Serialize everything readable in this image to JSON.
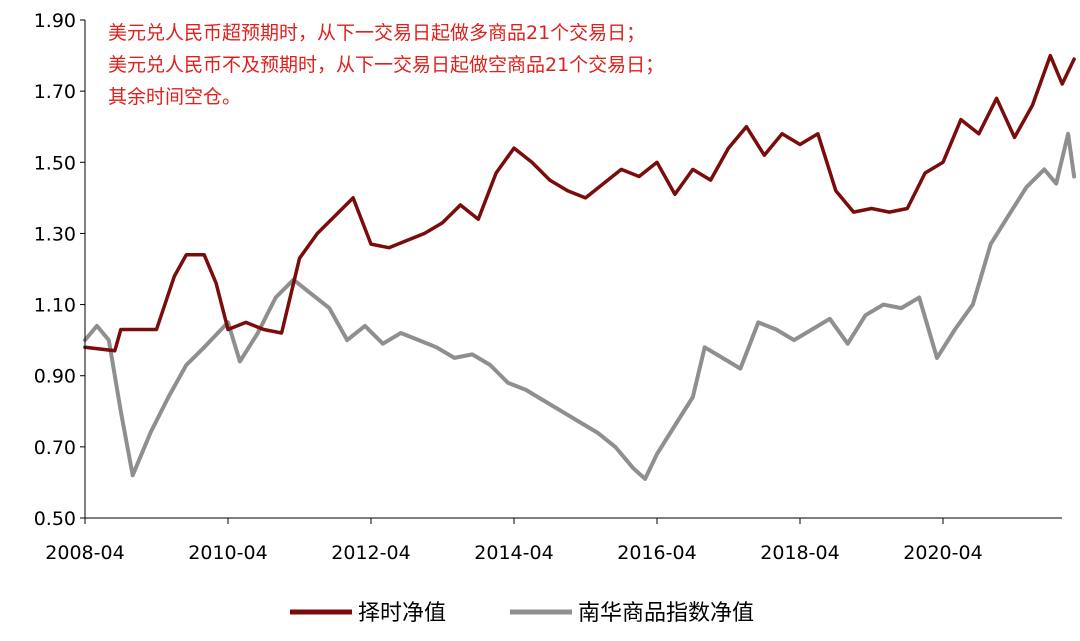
{
  "chart_data": {
    "type": "line",
    "title": "",
    "xlabel": "",
    "ylabel": "",
    "ylim": [
      0.5,
      1.9
    ],
    "y_ticks": [
      "0.50",
      "0.70",
      "0.90",
      "1.10",
      "1.30",
      "1.50",
      "1.70",
      "1.90"
    ],
    "x_ticks": [
      "2008-04",
      "2010-04",
      "2012-04",
      "2014-04",
      "2016-04",
      "2018-04",
      "2020-04"
    ],
    "grid": false,
    "legend_position": "bottom",
    "annotation": [
      "美元兑人民币超预期时，从下一交易日起做多商品21个交易日；",
      "美元兑人民币不及预期时，从下一交易日起做空商品21个交易日；",
      "其余时间空仓。"
    ],
    "series": [
      {
        "name": "择时净值",
        "color": "#7b0c0c",
        "points": [
          [
            "2008-04",
            0.98
          ],
          [
            "2008-09",
            0.97
          ],
          [
            "2008-10",
            1.03
          ],
          [
            "2009-04",
            1.03
          ],
          [
            "2009-07",
            1.18
          ],
          [
            "2009-09",
            1.24
          ],
          [
            "2009-12",
            1.24
          ],
          [
            "2010-02",
            1.16
          ],
          [
            "2010-04",
            1.03
          ],
          [
            "2010-07",
            1.05
          ],
          [
            "2010-10",
            1.03
          ],
          [
            "2011-01",
            1.02
          ],
          [
            "2011-04",
            1.23
          ],
          [
            "2011-07",
            1.3
          ],
          [
            "2011-10",
            1.35
          ],
          [
            "2012-01",
            1.4
          ],
          [
            "2012-04",
            1.27
          ],
          [
            "2012-07",
            1.26
          ],
          [
            "2012-10",
            1.28
          ],
          [
            "2013-01",
            1.3
          ],
          [
            "2013-04",
            1.33
          ],
          [
            "2013-07",
            1.38
          ],
          [
            "2013-10",
            1.34
          ],
          [
            "2014-01",
            1.47
          ],
          [
            "2014-04",
            1.54
          ],
          [
            "2014-07",
            1.5
          ],
          [
            "2014-10",
            1.45
          ],
          [
            "2015-01",
            1.42
          ],
          [
            "2015-04",
            1.4
          ],
          [
            "2015-07",
            1.44
          ],
          [
            "2015-10",
            1.48
          ],
          [
            "2016-01",
            1.46
          ],
          [
            "2016-04",
            1.5
          ],
          [
            "2016-07",
            1.41
          ],
          [
            "2016-10",
            1.48
          ],
          [
            "2017-01",
            1.45
          ],
          [
            "2017-04",
            1.54
          ],
          [
            "2017-07",
            1.6
          ],
          [
            "2017-10",
            1.52
          ],
          [
            "2018-01",
            1.58
          ],
          [
            "2018-04",
            1.55
          ],
          [
            "2018-07",
            1.58
          ],
          [
            "2018-10",
            1.42
          ],
          [
            "2019-01",
            1.36
          ],
          [
            "2019-04",
            1.37
          ],
          [
            "2019-07",
            1.36
          ],
          [
            "2019-10",
            1.37
          ],
          [
            "2020-01",
            1.47
          ],
          [
            "2020-04",
            1.5
          ],
          [
            "2020-07",
            1.62
          ],
          [
            "2020-10",
            1.58
          ],
          [
            "2021-01",
            1.68
          ],
          [
            "2021-04",
            1.57
          ],
          [
            "2021-07",
            1.66
          ],
          [
            "2021-10",
            1.8
          ],
          [
            "2021-12",
            1.72
          ],
          [
            "2022-02",
            1.79
          ]
        ]
      },
      {
        "name": "南华商品指数净值",
        "color": "#8f8f8f",
        "points": [
          [
            "2008-04",
            1.0
          ],
          [
            "2008-06",
            1.04
          ],
          [
            "2008-08",
            1.0
          ],
          [
            "2008-10",
            0.8
          ],
          [
            "2008-12",
            0.62
          ],
          [
            "2009-03",
            0.74
          ],
          [
            "2009-06",
            0.84
          ],
          [
            "2009-09",
            0.93
          ],
          [
            "2009-12",
            0.98
          ],
          [
            "2010-04",
            1.05
          ],
          [
            "2010-06",
            0.94
          ],
          [
            "2010-09",
            1.02
          ],
          [
            "2010-12",
            1.12
          ],
          [
            "2011-03",
            1.17
          ],
          [
            "2011-06",
            1.13
          ],
          [
            "2011-09",
            1.09
          ],
          [
            "2011-12",
            1.0
          ],
          [
            "2012-03",
            1.04
          ],
          [
            "2012-06",
            0.99
          ],
          [
            "2012-09",
            1.02
          ],
          [
            "2012-12",
            1.0
          ],
          [
            "2013-03",
            0.98
          ],
          [
            "2013-06",
            0.95
          ],
          [
            "2013-09",
            0.96
          ],
          [
            "2013-12",
            0.93
          ],
          [
            "2014-03",
            0.88
          ],
          [
            "2014-06",
            0.86
          ],
          [
            "2014-09",
            0.83
          ],
          [
            "2014-12",
            0.8
          ],
          [
            "2015-03",
            0.77
          ],
          [
            "2015-06",
            0.74
          ],
          [
            "2015-09",
            0.7
          ],
          [
            "2015-12",
            0.64
          ],
          [
            "2016-02",
            0.61
          ],
          [
            "2016-04",
            0.68
          ],
          [
            "2016-07",
            0.76
          ],
          [
            "2016-10",
            0.84
          ],
          [
            "2016-12",
            0.98
          ],
          [
            "2017-03",
            0.95
          ],
          [
            "2017-06",
            0.92
          ],
          [
            "2017-09",
            1.05
          ],
          [
            "2017-12",
            1.03
          ],
          [
            "2018-03",
            1.0
          ],
          [
            "2018-06",
            1.03
          ],
          [
            "2018-09",
            1.06
          ],
          [
            "2018-12",
            0.99
          ],
          [
            "2019-03",
            1.07
          ],
          [
            "2019-06",
            1.1
          ],
          [
            "2019-09",
            1.09
          ],
          [
            "2019-12",
            1.12
          ],
          [
            "2020-03",
            0.95
          ],
          [
            "2020-06",
            1.03
          ],
          [
            "2020-09",
            1.1
          ],
          [
            "2020-12",
            1.27
          ],
          [
            "2021-03",
            1.35
          ],
          [
            "2021-06",
            1.43
          ],
          [
            "2021-09",
            1.48
          ],
          [
            "2021-11",
            1.44
          ],
          [
            "2022-01",
            1.58
          ],
          [
            "2022-02",
            1.46
          ]
        ]
      }
    ]
  }
}
